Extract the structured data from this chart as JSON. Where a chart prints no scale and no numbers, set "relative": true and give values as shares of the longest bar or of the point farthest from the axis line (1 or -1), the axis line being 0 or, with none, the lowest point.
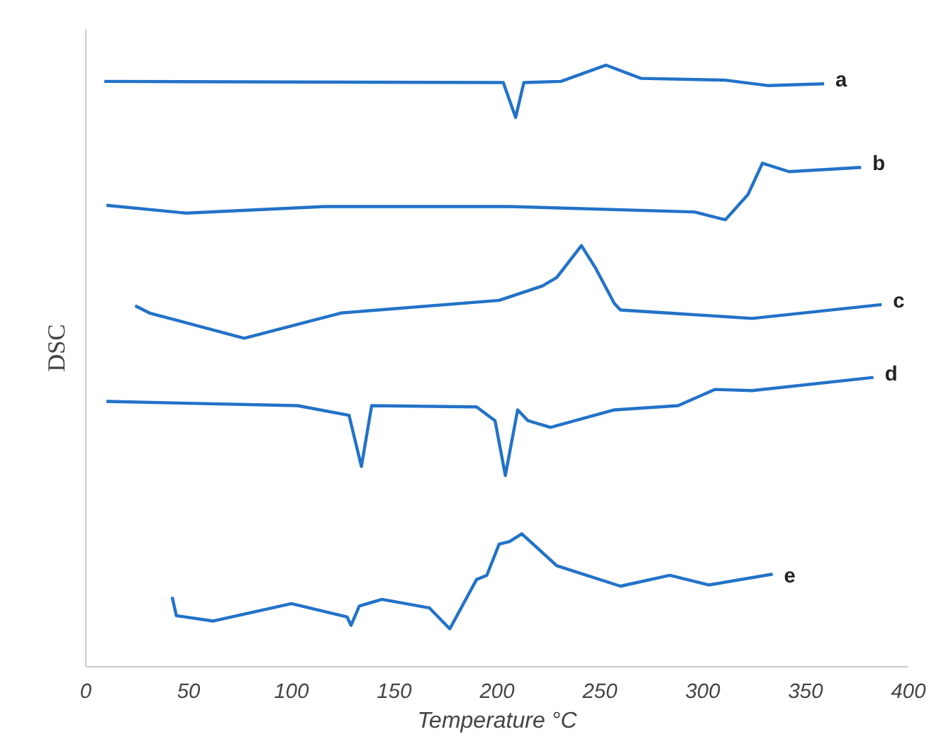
{
  "chart_data": {
    "type": "line",
    "relative": true,
    "xlabel": "Temperature °C",
    "ylabel": "DSC",
    "xlim": [
      0,
      400
    ],
    "xticks": [
      0,
      50,
      100,
      150,
      200,
      250,
      300,
      350,
      400
    ],
    "tick_labels": "x",
    "grid": false,
    "marker": "none",
    "line_style": "solid",
    "series": [
      {
        "name": "a",
        "color": "#2272c8",
        "x": [
          9,
          203,
          209,
          213,
          231,
          253,
          270,
          311,
          332,
          359
        ],
        "values": [
          0.973,
          0.971,
          0.913,
          0.971,
          0.973,
          1.0,
          0.978,
          0.975,
          0.966,
          0.969
        ]
      },
      {
        "name": "b",
        "color": "#2272c8",
        "x": [
          10,
          49,
          116,
          206,
          296,
          311,
          322,
          329,
          342,
          377
        ],
        "values": [
          0.767,
          0.754,
          0.765,
          0.765,
          0.756,
          0.743,
          0.785,
          0.837,
          0.823,
          0.83
        ]
      },
      {
        "name": "c",
        "color": "#2272c8",
        "x": [
          24,
          31,
          77,
          124,
          201,
          222,
          229,
          241,
          248,
          257,
          260,
          283,
          324,
          387
        ],
        "values": [
          0.6,
          0.588,
          0.546,
          0.588,
          0.609,
          0.633,
          0.647,
          0.7,
          0.662,
          0.604,
          0.593,
          0.588,
          0.579,
          0.602
        ]
      },
      {
        "name": "d",
        "color": "#2272c8",
        "x": [
          10,
          103,
          128,
          134,
          139,
          190,
          199,
          204,
          210,
          215,
          226,
          257,
          288,
          306,
          324,
          383
        ],
        "values": [
          0.441,
          0.434,
          0.418,
          0.333,
          0.434,
          0.432,
          0.409,
          0.318,
          0.427,
          0.409,
          0.398,
          0.427,
          0.434,
          0.461,
          0.459,
          0.481
        ]
      },
      {
        "name": "e",
        "color": "#2272c8",
        "x": [
          42,
          44,
          62,
          100,
          127,
          129,
          133,
          144,
          167,
          177,
          190,
          195,
          201,
          206,
          212,
          229,
          260,
          284,
          303,
          334
        ],
        "values": [
          0.116,
          0.085,
          0.076,
          0.105,
          0.083,
          0.069,
          0.101,
          0.112,
          0.098,
          0.063,
          0.145,
          0.152,
          0.204,
          0.208,
          0.221,
          0.168,
          0.134,
          0.152,
          0.136,
          0.154
        ]
      }
    ]
  }
}
